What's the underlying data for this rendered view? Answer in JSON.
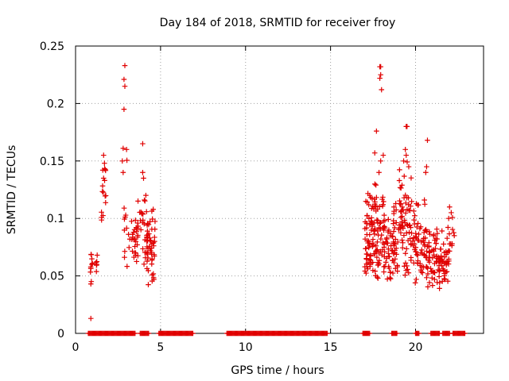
{
  "chart_data": {
    "type": "scatter",
    "title": "Day 184 of 2018, SRMTID for receiver froy",
    "xlabel": "GPS time / hours",
    "ylabel": "SRMTID / TECUs",
    "xlim": [
      0,
      24
    ],
    "ylim": [
      0,
      0.25
    ],
    "xticks": [
      "0",
      "5",
      "10",
      "15",
      "20"
    ],
    "yticks": [
      "0",
      "0.05",
      "0.1",
      "0.15",
      "0.2",
      "0.25"
    ],
    "grid": true,
    "marker": "+",
    "color": "#e00000",
    "zero_intervals": [
      [
        0.75,
        1.55
      ],
      [
        1.6,
        3.5
      ],
      [
        3.8,
        4.3
      ],
      [
        4.9,
        6.9
      ],
      [
        8.9,
        14.8
      ],
      [
        16.9,
        17.3
      ],
      [
        18.6,
        18.9
      ],
      [
        20.0,
        20.2
      ],
      [
        20.9,
        21.4
      ],
      [
        21.6,
        22.0
      ],
      [
        22.2,
        22.9
      ]
    ],
    "clusters": [
      {
        "x": [
          0.85,
          1.05
        ],
        "y": [
          0.036,
          0.076
        ],
        "n": 10
      },
      {
        "x": [
          1.2,
          1.4
        ],
        "y": [
          0.05,
          0.075
        ],
        "n": 6
      },
      {
        "x": [
          1.5,
          1.8
        ],
        "y": [
          0.085,
          0.155
        ],
        "n": 14
      },
      {
        "x": [
          2.8,
          3.05
        ],
        "y": [
          0.035,
          0.16
        ],
        "n": 10
      },
      {
        "x": [
          3.1,
          3.5
        ],
        "y": [
          0.06,
          0.11
        ],
        "n": 14
      },
      {
        "x": [
          3.5,
          4.15
        ],
        "y": [
          0.045,
          0.125
        ],
        "n": 35
      },
      {
        "x": [
          4.15,
          4.7
        ],
        "y": [
          0.04,
          0.12
        ],
        "n": 55
      },
      {
        "x": [
          17.0,
          17.5
        ],
        "y": [
          0.04,
          0.13
        ],
        "n": 60
      },
      {
        "x": [
          17.5,
          18.2
        ],
        "y": [
          0.04,
          0.14
        ],
        "n": 70
      },
      {
        "x": [
          18.2,
          19.0
        ],
        "y": [
          0.035,
          0.12
        ],
        "n": 60
      },
      {
        "x": [
          19.0,
          19.8
        ],
        "y": [
          0.045,
          0.15
        ],
        "n": 70
      },
      {
        "x": [
          19.8,
          20.6
        ],
        "y": [
          0.04,
          0.12
        ],
        "n": 60
      },
      {
        "x": [
          20.6,
          21.3
        ],
        "y": [
          0.035,
          0.1
        ],
        "n": 55
      },
      {
        "x": [
          21.3,
          21.9
        ],
        "y": [
          0.03,
          0.09
        ],
        "n": 45
      },
      {
        "x": [
          21.9,
          22.3
        ],
        "y": [
          0.05,
          0.11
        ],
        "n": 15
      }
    ],
    "points": [
      [
        0.9,
        0.013
      ],
      [
        0.9,
        0.043
      ],
      [
        2.9,
        0.233
      ],
      [
        2.85,
        0.221
      ],
      [
        2.9,
        0.215
      ],
      [
        2.85,
        0.195
      ],
      [
        2.8,
        0.161
      ],
      [
        2.75,
        0.15
      ],
      [
        3.95,
        0.165
      ],
      [
        1.65,
        0.155
      ],
      [
        1.7,
        0.148
      ],
      [
        1.6,
        0.142
      ],
      [
        1.65,
        0.135
      ],
      [
        3.0,
        0.16
      ],
      [
        2.8,
        0.14
      ],
      [
        3.95,
        0.14
      ],
      [
        4.0,
        0.135
      ],
      [
        17.95,
        0.232
      ],
      [
        17.9,
        0.232
      ],
      [
        17.95,
        0.225
      ],
      [
        17.9,
        0.222
      ],
      [
        18.0,
        0.212
      ],
      [
        17.7,
        0.176
      ],
      [
        19.45,
        0.18
      ],
      [
        19.5,
        0.18
      ],
      [
        20.7,
        0.168
      ],
      [
        19.4,
        0.16
      ],
      [
        19.45,
        0.155
      ],
      [
        18.1,
        0.155
      ],
      [
        17.95,
        0.15
      ],
      [
        17.6,
        0.157
      ],
      [
        17.85,
        0.14
      ],
      [
        20.65,
        0.145
      ],
      [
        20.6,
        0.14
      ],
      [
        19.6,
        0.145
      ],
      [
        19.3,
        0.15
      ],
      [
        22.0,
        0.11
      ],
      [
        22.1,
        0.105
      ],
      [
        21.95,
        0.1
      ]
    ]
  }
}
